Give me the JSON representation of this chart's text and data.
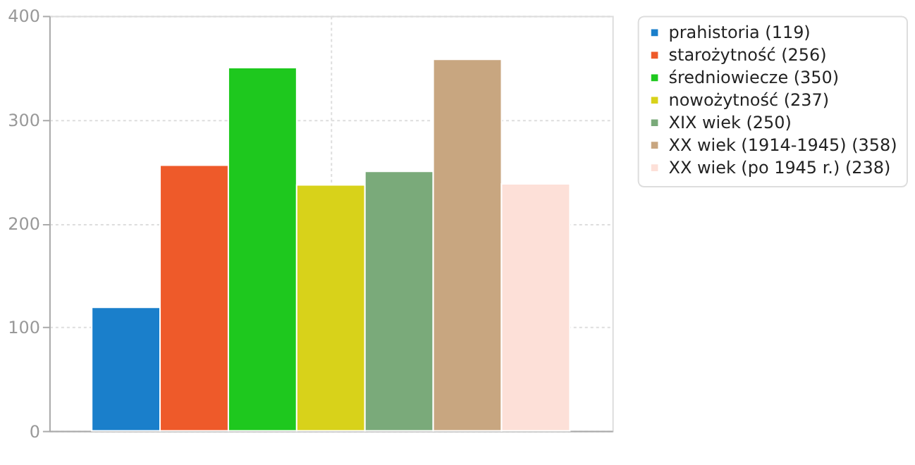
{
  "chart_data": {
    "type": "bar",
    "categories": [
      null
    ],
    "series": [
      {
        "name": "prahistoria (119)",
        "color": "#1a7fcb",
        "values": [
          119
        ]
      },
      {
        "name": "starożytność (256)",
        "color": "#ee5a2a",
        "values": [
          256
        ]
      },
      {
        "name": "średniowiecze (350)",
        "color": "#1ec81e",
        "values": [
          350
        ]
      },
      {
        "name": "nowożytność (237)",
        "color": "#d8d21a",
        "values": [
          237
        ]
      },
      {
        "name": "XIX wiek (250)",
        "color": "#7aaa7a",
        "values": [
          250
        ]
      },
      {
        "name": "XX wiek (1914-1945) (358)",
        "color": "#c8a680",
        "values": [
          358
        ]
      },
      {
        "name": "XX wiek (po 1945 r.) (238)",
        "color": "#fde0d8",
        "values": [
          238
        ]
      }
    ],
    "ylim": [
      0,
      400
    ],
    "yticks": [
      0,
      100,
      200,
      300,
      400
    ],
    "grid": true,
    "legend": "right",
    "tick_labels": "y"
  }
}
